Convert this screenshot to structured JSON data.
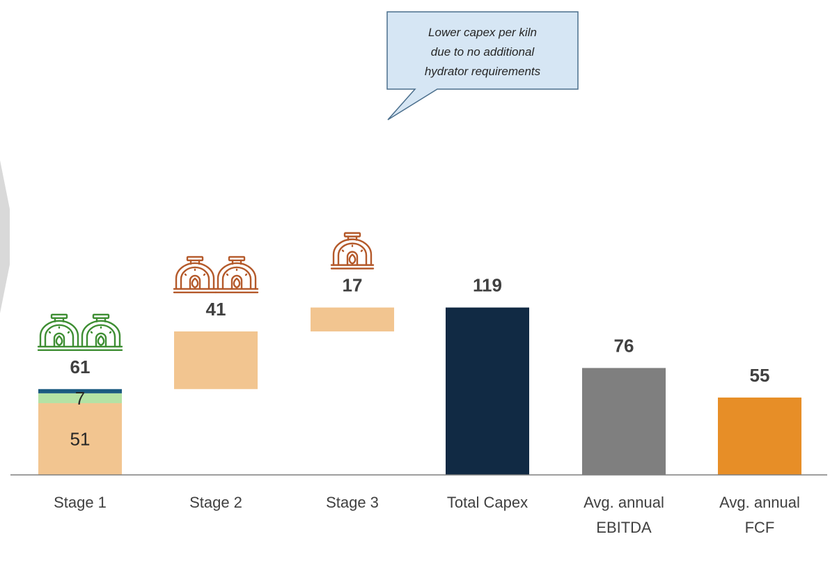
{
  "colors": {
    "segment_base": "#F2C590",
    "segment_green": "#B4E2A4",
    "segment_top": "#1B5A80",
    "total_capex": "#112A44",
    "ebitda": "#7F7F7F",
    "fcf": "#E78E27",
    "kiln_green": "#3E8E33",
    "kiln_orange": "#B4592A",
    "callout_fill": "#D6E6F4",
    "callout_stroke": "#4A6E8C",
    "axis": "#7F7F7F",
    "chevron": "#D9D9D9"
  },
  "chart_data": {
    "type": "bar",
    "subtype": "waterfall",
    "ylim": [
      0,
      130
    ],
    "categories": [
      [
        "Stage 1"
      ],
      [
        "Stage 2"
      ],
      [
        "Stage 3"
      ],
      [
        "Total Capex"
      ],
      [
        "Avg. annual",
        "EBITDA"
      ],
      [
        "Avg. annual",
        "FCF"
      ]
    ],
    "totals": [
      61,
      41,
      17,
      119,
      76,
      55
    ],
    "bars": [
      {
        "category_index": 0,
        "start": 0,
        "segments": [
          {
            "value": 51,
            "color_key": "segment_base",
            "label": "51"
          },
          {
            "value": 7,
            "color_key": "segment_green",
            "label": "7"
          },
          {
            "value": 3,
            "color_key": "segment_top",
            "label": ""
          }
        ]
      },
      {
        "category_index": 1,
        "start": 61,
        "segments": [
          {
            "value": 41,
            "color_key": "segment_base",
            "label": ""
          }
        ]
      },
      {
        "category_index": 2,
        "start": 102,
        "segments": [
          {
            "value": 17,
            "color_key": "segment_base",
            "label": ""
          }
        ]
      },
      {
        "category_index": 3,
        "start": 0,
        "segments": [
          {
            "value": 119,
            "color_key": "total_capex",
            "label": ""
          }
        ]
      },
      {
        "category_index": 4,
        "start": 0,
        "segments": [
          {
            "value": 76,
            "color_key": "ebitda",
            "label": ""
          }
        ]
      },
      {
        "category_index": 5,
        "start": 0,
        "segments": [
          {
            "value": 55,
            "color_key": "fcf",
            "label": ""
          }
        ]
      }
    ],
    "kiln_icons": [
      {
        "category_index": 0,
        "count": 2,
        "color_key": "kiln_green",
        "icon": "kiln-icon"
      },
      {
        "category_index": 1,
        "count": 2,
        "color_key": "kiln_orange",
        "icon": "kiln-icon"
      },
      {
        "category_index": 2,
        "count": 1,
        "color_key": "kiln_orange",
        "icon": "kiln-icon"
      }
    ],
    "annotations": [
      {
        "text_lines": [
          "Lower capex per kiln",
          "due to no additional",
          "hydrator requirements"
        ],
        "points_to_category_index": 2
      }
    ],
    "grid": false,
    "legend": "none"
  }
}
